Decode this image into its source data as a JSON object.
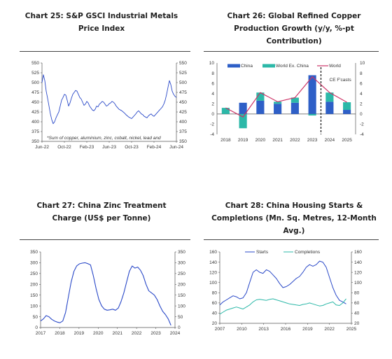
{
  "charts": [
    {
      "id": "c25",
      "title": "Chart 25: S&P GSCI Industrial Metals Price Index",
      "note": "*Sum of copper, aluminium, zinc, cobalt, nickel, lead and",
      "line_color": "#2a49c8"
    },
    {
      "id": "c26",
      "title": "Chart 26: Global Refined Copper Production Growth (y/y, %-pt Contribution)",
      "forecast_label": "CE F'casts",
      "colors": {
        "china": "#2e5fc7",
        "ex_china": "#2cb8a8",
        "world": "#cc3366"
      }
    },
    {
      "id": "c27",
      "title": "Chart 27: China Zinc Treatment Charge (US$ per Tonne)",
      "line_color": "#2a49c8"
    },
    {
      "id": "c28",
      "title": "Chart 28: China Housing Starts & Completions (Mn. Sq. Metres, 12-Month Avg.)",
      "colors": {
        "starts": "#2a49c8",
        "completions": "#2cb8a8"
      }
    }
  ],
  "chart_data": [
    {
      "type": "line",
      "title": "Chart 25: S&P GSCI Industrial Metals Price Index",
      "x_ticks": [
        "Jun-22",
        "Oct-22",
        "Feb-23",
        "Jun-23",
        "Oct-23",
        "Feb-24",
        "Jun-24"
      ],
      "y_ticks": [
        350,
        375,
        400,
        425,
        450,
        475,
        500,
        525,
        550
      ],
      "ylim": [
        350,
        550
      ],
      "series": [
        {
          "values": [
            500,
            520,
            505,
            478,
            460,
            440,
            420,
            405,
            395,
            400,
            410,
            418,
            425,
            440,
            455,
            462,
            470,
            468,
            455,
            440,
            448,
            460,
            470,
            475,
            480,
            478,
            470,
            462,
            458,
            450,
            442,
            445,
            452,
            448,
            440,
            435,
            430,
            428,
            432,
            440,
            438,
            445,
            448,
            452,
            450,
            445,
            440,
            442,
            446,
            448,
            452,
            450,
            446,
            440,
            436,
            432,
            430,
            428,
            425,
            422,
            418,
            415,
            412,
            410,
            408,
            412,
            416,
            420,
            425,
            428,
            424,
            420,
            418,
            414,
            412,
            410,
            415,
            418,
            420,
            416,
            414,
            418,
            422,
            426,
            430,
            434,
            438,
            445,
            455,
            470,
            488,
            505,
            495,
            478,
            470,
            465,
            462
          ]
        }
      ]
    },
    {
      "type": "bar",
      "title": "Chart 26: Global Refined Copper Production Growth (y/y, %-pt Contribution)",
      "categories": [
        "2018",
        "2019",
        "2020",
        "2021",
        "2022",
        "2023",
        "2024",
        "2025"
      ],
      "ylim": [
        -4,
        10
      ],
      "y_ticks": [
        -4,
        -2,
        0,
        2,
        4,
        6,
        8,
        10
      ],
      "series": [
        {
          "name": "China",
          "values": [
            0,
            2.2,
            2.6,
            2.0,
            2.2,
            7.6,
            2.4,
            0.8
          ]
        },
        {
          "name": "World Ex. China",
          "values": [
            1.2,
            -2.8,
            1.6,
            0.4,
            1.0,
            -0.3,
            1.8,
            1.5
          ]
        },
        {
          "name": "World",
          "values": [
            1.2,
            -0.6,
            4.2,
            2.4,
            3.2,
            7.3,
            4.2,
            2.3
          ]
        }
      ],
      "forecast_from": "2024",
      "annotation": "CE F'casts"
    },
    {
      "type": "line",
      "title": "Chart 27: China Zinc Treatment Charge (US$ per Tonne)",
      "x_ticks": [
        "2017",
        "2018",
        "2019",
        "2020",
        "2021",
        "2022",
        "2023",
        "2024"
      ],
      "y_ticks": [
        0,
        50,
        100,
        150,
        200,
        250,
        300,
        350
      ],
      "ylim": [
        0,
        350
      ],
      "series": [
        {
          "values": [
            30,
            40,
            55,
            50,
            38,
            30,
            25,
            22,
            30,
            70,
            140,
            210,
            260,
            285,
            295,
            298,
            300,
            296,
            290,
            240,
            180,
            130,
            100,
            85,
            80,
            82,
            85,
            80,
            90,
            120,
            160,
            210,
            260,
            285,
            275,
            280,
            265,
            240,
            200,
            170,
            160,
            150,
            130,
            100,
            75,
            60,
            40,
            10
          ]
        }
      ]
    },
    {
      "type": "line",
      "title": "Chart 28: China Housing Starts & Completions (Mn. Sq. Metres, 12-Month Avg.)",
      "x_ticks": [
        "2007",
        "2010",
        "2013",
        "2016",
        "2019",
        "2022",
        "2025"
      ],
      "y_ticks": [
        20,
        40,
        60,
        80,
        100,
        120,
        140,
        160
      ],
      "ylim": [
        20,
        160
      ],
      "series": [
        {
          "name": "Starts",
          "values": [
            56,
            62,
            66,
            70,
            74,
            72,
            68,
            70,
            80,
            100,
            120,
            125,
            120,
            118,
            125,
            122,
            115,
            108,
            98,
            90,
            92,
            96,
            102,
            108,
            112,
            120,
            130,
            135,
            132,
            135,
            142,
            140,
            130,
            110,
            90,
            75,
            65,
            62,
            58
          ]
        },
        {
          "name": "Completions",
          "values": [
            38,
            42,
            46,
            48,
            50,
            52,
            50,
            48,
            52,
            56,
            62,
            66,
            67,
            66,
            65,
            67,
            68,
            66,
            64,
            62,
            60,
            58,
            57,
            56,
            55,
            57,
            58,
            60,
            58,
            56,
            54,
            55,
            58,
            60,
            62,
            56,
            55,
            60,
            68
          ]
        }
      ]
    }
  ]
}
